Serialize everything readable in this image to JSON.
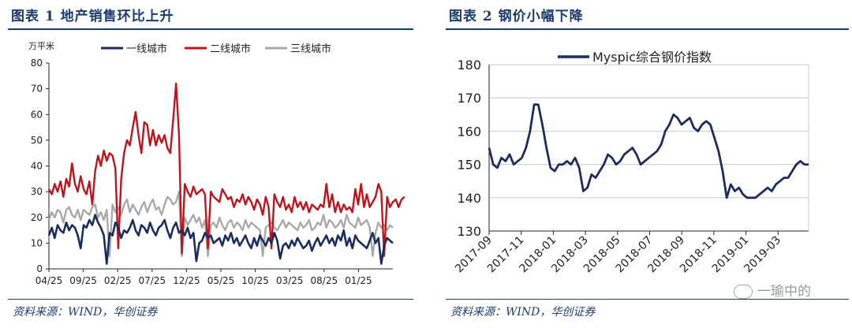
{
  "left": {
    "title": "图表 1   地产销售环比上升",
    "source": "资料来源：WIND，华创证券"
  },
  "right": {
    "title": "图表 2   钢价小幅下降",
    "source": "资料来源：WIND，华创证券"
  },
  "watermark": "一瑜中的",
  "chart_data": [
    {
      "type": "line",
      "yunit": "万平米",
      "ylim": [
        0,
        80
      ],
      "yticks": [
        0,
        10,
        20,
        30,
        40,
        50,
        60,
        70,
        80
      ],
      "x_tick_labels": [
        "04/25",
        "09/25",
        "02/25",
        "07/25",
        "12/25",
        "05/25",
        "10/25",
        "03/25",
        "08/25",
        "01/25"
      ],
      "legend_position": "top",
      "grid": false,
      "series": [
        {
          "name": "一线城市",
          "color": "#1a2d5e",
          "values": [
            13,
            16,
            12,
            17,
            15,
            14,
            18,
            15,
            17,
            16,
            13,
            8,
            17,
            16,
            19,
            17,
            21,
            18,
            16,
            13,
            2,
            14,
            13,
            18,
            16,
            12,
            15,
            14,
            16,
            19,
            15,
            13,
            17,
            16,
            14,
            18,
            15,
            13,
            16,
            17,
            19,
            15,
            12,
            16,
            18,
            14,
            15,
            13,
            16,
            12,
            14,
            3,
            10,
            11,
            14,
            12,
            13,
            10,
            11,
            12,
            9,
            13,
            11,
            14,
            10,
            12,
            9,
            11,
            13,
            10,
            8,
            12,
            9,
            13,
            11,
            9,
            12,
            10,
            14,
            11,
            4,
            9,
            10,
            8,
            11,
            9,
            12,
            10,
            8,
            9,
            11,
            7,
            10,
            12,
            9,
            11,
            13,
            10,
            12,
            9,
            13,
            11,
            15,
            9,
            12,
            8,
            13,
            11,
            10,
            9,
            8,
            11,
            14,
            10,
            12,
            2,
            9,
            12,
            11,
            10
          ]
        },
        {
          "name": "二线城市",
          "color": "#c0141c",
          "values": [
            31,
            29,
            33,
            30,
            34,
            28,
            35,
            32,
            41,
            33,
            30,
            36,
            31,
            29,
            34,
            25,
            38,
            44,
            40,
            46,
            42,
            45,
            44,
            39,
            8,
            35,
            45,
            50,
            48,
            55,
            61,
            52,
            45,
            57,
            56,
            48,
            54,
            48,
            52,
            49,
            52,
            47,
            45,
            58,
            72,
            52,
            6,
            33,
            30,
            28,
            32,
            29,
            30,
            31,
            29,
            8,
            30,
            28,
            27,
            26,
            31,
            29,
            27,
            28,
            24,
            27,
            26,
            29,
            25,
            28,
            26,
            23,
            27,
            25,
            21,
            28,
            24,
            8,
            29,
            26,
            24,
            28,
            23,
            25,
            22,
            28,
            24,
            26,
            23,
            26,
            22,
            25,
            24,
            23,
            25,
            24,
            33,
            24,
            29,
            22,
            26,
            22,
            25,
            23,
            24,
            22,
            31,
            25,
            33,
            24,
            29,
            24,
            26,
            28,
            33,
            30,
            5,
            28,
            24,
            26,
            27,
            24,
            27,
            28
          ]
        },
        {
          "name": "三线城市",
          "color": "#a9a9a9",
          "values": [
            19,
            22,
            20,
            23,
            22,
            18,
            23,
            24,
            21,
            20,
            23,
            19,
            23,
            22,
            21,
            24,
            25,
            20,
            22,
            19,
            23,
            5,
            25,
            22,
            24,
            21,
            25,
            27,
            22,
            25,
            23,
            21,
            24,
            26,
            22,
            25,
            27,
            23,
            24,
            21,
            25,
            28,
            27,
            25,
            26,
            30,
            5,
            20,
            17,
            19,
            21,
            18,
            20,
            16,
            19,
            5,
            17,
            18,
            16,
            20,
            17,
            15,
            18,
            19,
            16,
            18,
            17,
            15,
            19,
            16,
            18,
            17,
            16,
            15,
            5,
            16,
            17,
            18,
            16,
            15,
            17,
            19,
            16,
            18,
            17,
            16,
            15,
            18,
            16,
            17,
            19,
            15,
            16,
            18,
            17,
            21,
            16,
            19,
            18,
            16,
            17,
            19,
            16,
            21,
            18,
            17,
            16,
            20,
            17,
            18,
            19,
            16,
            5,
            14,
            18,
            16,
            17,
            15,
            17,
            16
          ]
        }
      ]
    },
    {
      "type": "line",
      "ylim": [
        130,
        180
      ],
      "yticks": [
        130,
        140,
        150,
        160,
        170,
        180
      ],
      "x_tick_labels": [
        "2017-09",
        "2017-11",
        "2018-01",
        "2018-03",
        "2018-05",
        "2018-07",
        "2018-09",
        "2018-11",
        "2019-01",
        "2019-03"
      ],
      "legend_position": "top-left",
      "grid": true,
      "series": [
        {
          "name": "Myspic综合钢价指数",
          "color": "#1a2d5e",
          "values": [
            155,
            150,
            149,
            152,
            151,
            153,
            150,
            151,
            152,
            155,
            160,
            168,
            168,
            162,
            155,
            149,
            148,
            150,
            150,
            151,
            150,
            152,
            149,
            142,
            143,
            147,
            146,
            148,
            150,
            153,
            152,
            150,
            151,
            153,
            154,
            155,
            153,
            150,
            151,
            152,
            153,
            154,
            156,
            160,
            162,
            165,
            164,
            162,
            163,
            164,
            161,
            160,
            162,
            163,
            162,
            158,
            154,
            148,
            140,
            144,
            142,
            143,
            141,
            140,
            140,
            140,
            141,
            142,
            143,
            142,
            144,
            145,
            146,
            146,
            148,
            150,
            151,
            150,
            150
          ]
        }
      ]
    }
  ]
}
